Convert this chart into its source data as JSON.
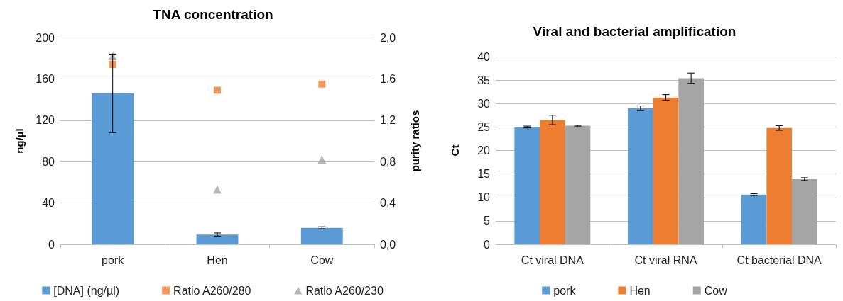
{
  "chart_data": [
    {
      "type": "bar",
      "title": "TNA concentration",
      "ylabel": "ng/µl",
      "y2label": "purity ratios",
      "categories": [
        "pork",
        "Hen",
        "Cow"
      ],
      "series": [
        {
          "name": "[DNA] (ng/µl)",
          "color": "#5b9bd5",
          "values": [
            146,
            9.5,
            16
          ],
          "errors": [
            38,
            1.5,
            1
          ]
        },
        {
          "name": "Ratio A260/280",
          "type": "scatter",
          "axis": "y2",
          "marker": "square",
          "color": "#ed7d31",
          "values": [
            1.74,
            1.49,
            1.55
          ]
        },
        {
          "name": "Ratio A260/230",
          "type": "scatter",
          "axis": "y2",
          "marker": "triangle",
          "color": "#a5a5a5",
          "values": [
            1.82,
            0.53,
            0.82
          ]
        }
      ],
      "ylim": [
        0,
        200
      ],
      "yticks": [
        0,
        40,
        80,
        120,
        160,
        200
      ],
      "y2lim": [
        0,
        2
      ],
      "y2ticks": [
        {
          "value": 0,
          "label": "0,0"
        },
        {
          "value": 0.4,
          "label": "0,4"
        },
        {
          "value": 0.8,
          "label": "0,8"
        },
        {
          "value": 1.2,
          "label": "1,2"
        },
        {
          "value": 1.6,
          "label": "1,6"
        },
        {
          "value": 2,
          "label": "2,0"
        }
      ],
      "grid": "y",
      "legend": "bottom"
    },
    {
      "type": "bar",
      "title": "Viral and bacterial amplification",
      "ylabel": "Ct",
      "categories": [
        "Ct viral DNA",
        "Ct viral RNA",
        "Ct bacterial DNA"
      ],
      "series": [
        {
          "name": "pork",
          "color": "#5b9bd5",
          "values": [
            25.0,
            29.0,
            10.6
          ],
          "errors": [
            0.2,
            0.5,
            0.2
          ]
        },
        {
          "name": "Hen",
          "color": "#ed7d31",
          "values": [
            26.5,
            31.3,
            24.8
          ],
          "errors": [
            1.0,
            0.6,
            0.5
          ]
        },
        {
          "name": "Cow",
          "color": "#a5a5a5",
          "values": [
            25.3,
            35.4,
            13.9
          ],
          "errors": [
            0.1,
            1.1,
            0.3
          ]
        }
      ],
      "ylim": [
        0,
        40
      ],
      "yticks": [
        0,
        5,
        10,
        15,
        20,
        25,
        30,
        35,
        40
      ],
      "grid": "y",
      "legend": "bottom"
    }
  ]
}
